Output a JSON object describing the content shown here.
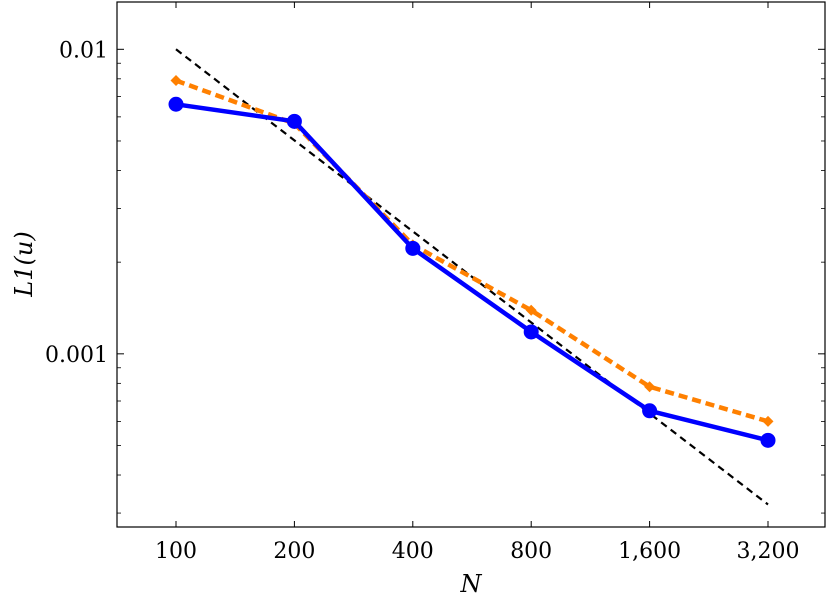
{
  "chart_data": {
    "type": "line",
    "xlabel": "N",
    "ylabel": "L1(u)",
    "x_scale": "log2",
    "y_scale": "log10",
    "x_ticks": [
      100,
      200,
      400,
      800,
      1600,
      3200
    ],
    "x_tick_labels": [
      "100",
      "200",
      "400",
      "800",
      "1,600",
      "3,200"
    ],
    "y_ticks": [
      0.001,
      0.01
    ],
    "y_tick_labels": [
      "0.001",
      "0.01"
    ],
    "ylim": [
      0.00027,
      0.0143
    ],
    "grid": false,
    "legend": "none",
    "series": [
      {
        "style": "solid",
        "marker": "circle",
        "color": "#0000ff",
        "x": [
          100,
          200,
          400,
          800,
          1600,
          3200
        ],
        "y": [
          0.0066,
          0.0058,
          0.00222,
          0.00118,
          0.00065,
          0.00052
        ]
      },
      {
        "style": "dashed",
        "marker": "diamond",
        "color": "#ff8000",
        "x": [
          100,
          200,
          400,
          800,
          1600,
          3200
        ],
        "y": [
          0.0079,
          0.0057,
          0.00228,
          0.00139,
          0.00078,
          0.0006
        ]
      },
      {
        "style": "dashed",
        "marker": "none",
        "color": "#000000",
        "x": [
          100,
          3200
        ],
        "y": [
          0.01,
          0.00032
        ]
      }
    ]
  }
}
